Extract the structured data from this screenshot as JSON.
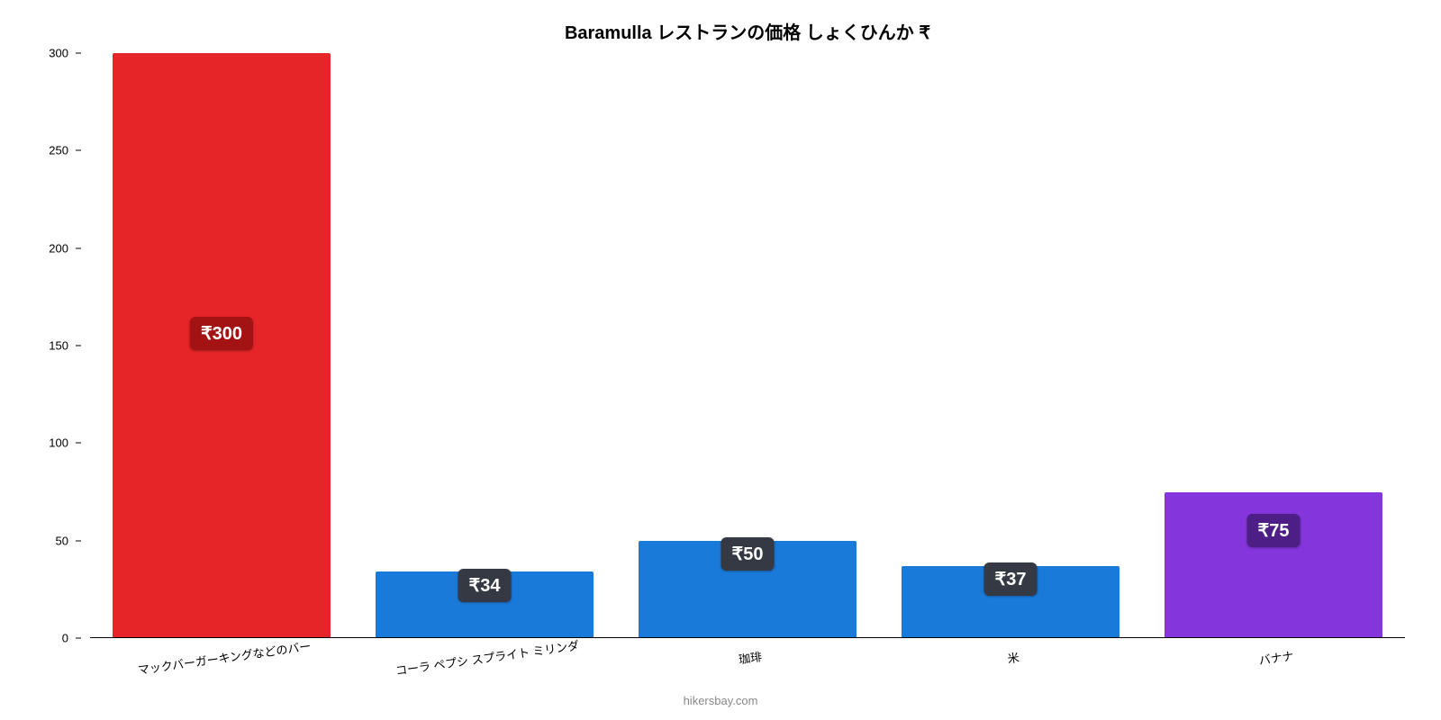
{
  "chart": {
    "type": "bar",
    "title": "Baramulla レストランの価格 しょくひんか ₹",
    "title_fontsize": 20,
    "title_color": "#000000",
    "background_color": "#ffffff",
    "axis_color": "#000000",
    "ylim": [
      0,
      300
    ],
    "ytick_step": 50,
    "yticks": [
      0,
      50,
      100,
      150,
      200,
      250,
      300
    ],
    "ytick_fontsize": 13,
    "bar_width_pct": 83,
    "xlabel_fontsize": 13,
    "xlabel_rotation_deg": -8,
    "value_badge_fontsize": 20,
    "value_badge_radius": 6,
    "attribution": "hikersbay.com",
    "attribution_fontsize": 13,
    "attribution_color": "#888888",
    "bars": [
      {
        "label": "マックバーガーキングなどのバー",
        "value": 300,
        "display": "₹300",
        "color": "#e52527",
        "badge_bg": "#a31313",
        "badge_top_pct": 45
      },
      {
        "label": "コーラ ペプシ スプライト ミリンダ",
        "value": 34,
        "display": "₹34",
        "color": "#1a7ad9",
        "badge_bg": "#343943",
        "badge_top_pct": -5
      },
      {
        "label": "珈琲",
        "value": 50,
        "display": "₹50",
        "color": "#1a7ad9",
        "badge_bg": "#343943",
        "badge_top_pct": -3
      },
      {
        "label": "米",
        "value": 37,
        "display": "₹37",
        "color": "#1a7ad9",
        "badge_bg": "#343943",
        "badge_top_pct": -5
      },
      {
        "label": "バナナ",
        "value": 75,
        "display": "₹75",
        "color": "#8436dc",
        "badge_bg": "#4d1e85",
        "badge_top_pct": 15
      }
    ]
  }
}
